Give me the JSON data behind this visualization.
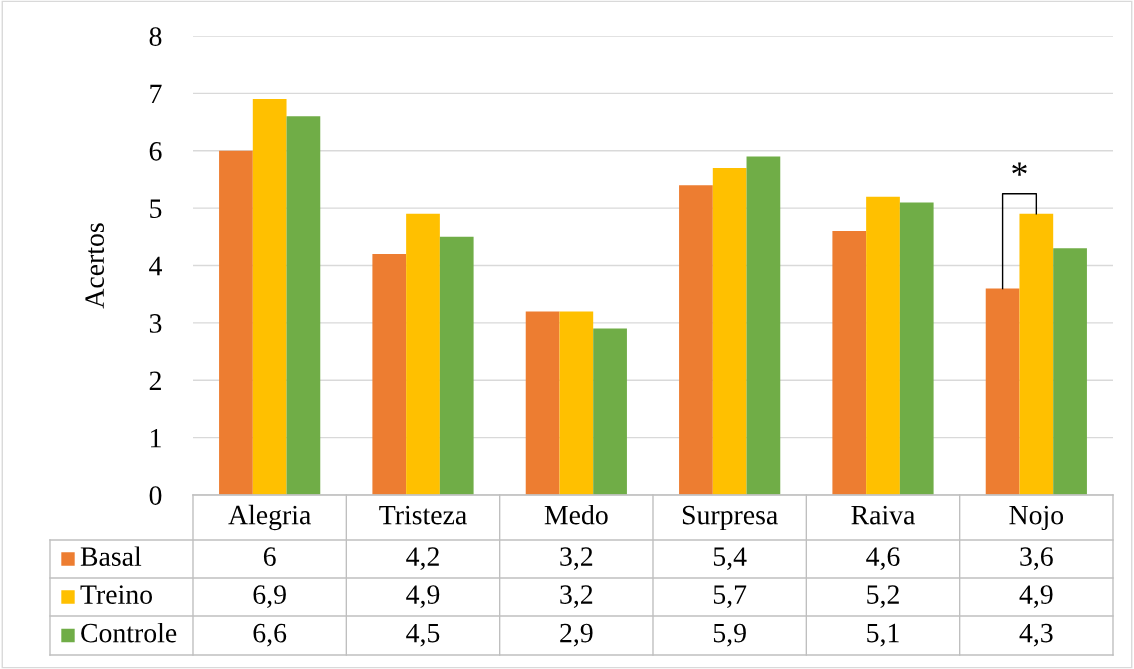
{
  "chart_data": {
    "type": "bar",
    "ylabel": "Acertos",
    "categories": [
      "Alegria",
      "Tristeza",
      "Medo",
      "Surpresa",
      "Raiva",
      "Nojo"
    ],
    "series": [
      {
        "name": "Basal",
        "color": "#ed7d31",
        "values": [
          6,
          4.2,
          3.2,
          5.4,
          4.6,
          3.6
        ],
        "value_labels": [
          "6",
          "4,2",
          "3,2",
          "5,4",
          "4,6",
          "3,6"
        ]
      },
      {
        "name": "Treino",
        "color": "#ffc000",
        "values": [
          6.9,
          4.9,
          3.2,
          5.7,
          5.2,
          4.9
        ],
        "value_labels": [
          "6,9",
          "4,9",
          "3,2",
          "5,7",
          "5,2",
          "4,9"
        ]
      },
      {
        "name": "Controle",
        "color": "#70ad47",
        "values": [
          6.6,
          4.5,
          2.9,
          5.9,
          5.1,
          4.3
        ],
        "value_labels": [
          "6,6",
          "4,5",
          "2,9",
          "5,9",
          "5,1",
          "4,3"
        ]
      }
    ],
    "ylim": [
      0,
      8
    ],
    "yticks": [
      0,
      1,
      2,
      3,
      4,
      5,
      6,
      7,
      8
    ],
    "grid": "y",
    "legend": "bottom",
    "annotations": [
      {
        "text": "*",
        "x": "Nojo",
        "y": 4.9
      }
    ]
  }
}
